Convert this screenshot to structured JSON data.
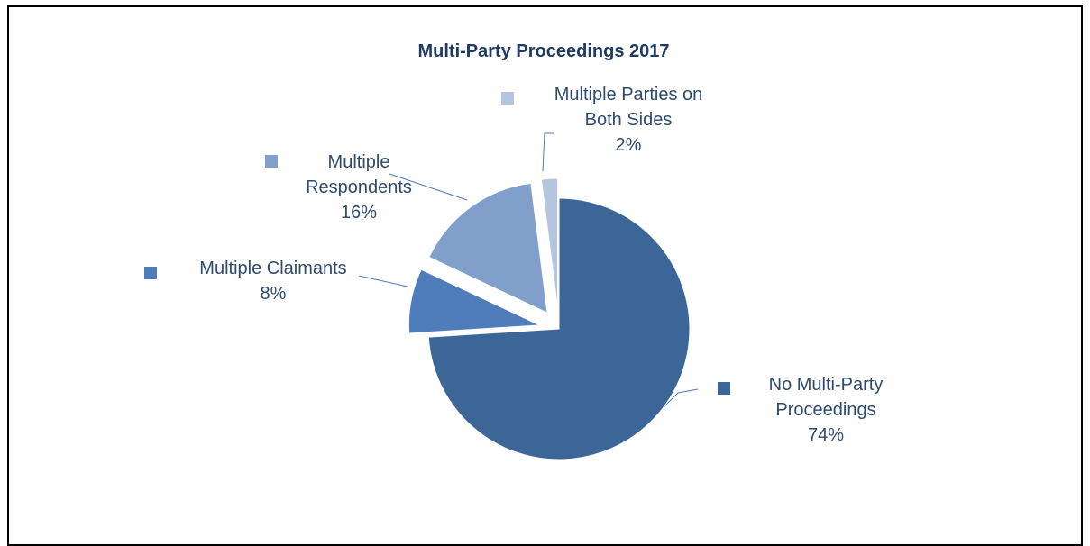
{
  "chart_data": {
    "type": "pie",
    "title": "Multi-Party Proceedings 2017",
    "slices": [
      {
        "name": "No Multi-Party Proceedings",
        "value": 74,
        "label_lines": [
          "No Multi-Party",
          "Proceedings",
          "74%"
        ],
        "color": "#3d6698"
      },
      {
        "name": "Multiple Claimants",
        "value": 8,
        "label_lines": [
          "Multiple Claimants",
          "8%"
        ],
        "color": "#4f7dbb"
      },
      {
        "name": "Multiple Respondents",
        "value": 16,
        "label_lines": [
          "Multiple",
          "Respondents",
          "16%"
        ],
        "color": "#809fcb"
      },
      {
        "name": "Multiple Parties on Both Sides",
        "value": 2,
        "label_lines": [
          "Multiple Parties on",
          "Both Sides",
          "2%"
        ],
        "color": "#b4c5e0"
      }
    ],
    "start_angle_deg": 0,
    "direction": "clockwise",
    "exploded": true,
    "legend": "none",
    "data_labels": "category-name-and-percent"
  }
}
